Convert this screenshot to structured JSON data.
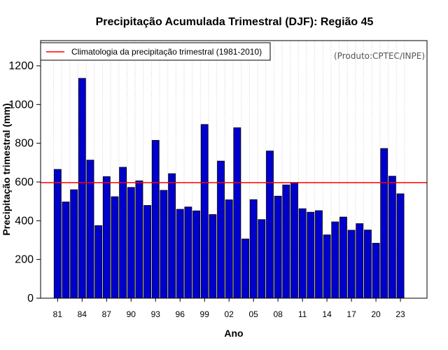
{
  "chart_data": {
    "type": "bar",
    "title": "Precipitação Acumulada Trimestral (DJF): Região 45",
    "xlabel": "Ano",
    "ylabel": "Precipitação trimestral (mm)",
    "credit": "(Produto:CPTEC/INPE)",
    "legend": {
      "label": "Climatologia da precipitação trimestral (1981-2010)",
      "placement": "top-left"
    },
    "ylim": [
      0,
      1330
    ],
    "yticks": [
      0,
      200,
      400,
      600,
      800,
      1000,
      1200
    ],
    "ytick_labels": [
      "0",
      "200",
      "400",
      "600",
      "800",
      "1000",
      "1200"
    ],
    "xtick_labels": [
      "81",
      "84",
      "87",
      "90",
      "93",
      "96",
      "99",
      "02",
      "05",
      "08",
      "11",
      "14",
      "17",
      "20",
      "23"
    ],
    "xtick_every": 3,
    "categories": [
      "81",
      "82",
      "83",
      "84",
      "85",
      "86",
      "87",
      "88",
      "89",
      "90",
      "91",
      "92",
      "93",
      "94",
      "95",
      "96",
      "97",
      "98",
      "99",
      "00",
      "01",
      "02",
      "03",
      "04",
      "05",
      "06",
      "07",
      "08",
      "09",
      "10",
      "11",
      "12",
      "13",
      "14",
      "15",
      "16",
      "17",
      "18",
      "19",
      "20",
      "21",
      "22",
      "23"
    ],
    "values": [
      665,
      497,
      560,
      1135,
      713,
      375,
      628,
      524,
      676,
      572,
      606,
      479,
      815,
      557,
      643,
      459,
      471,
      451,
      897,
      432,
      708,
      508,
      880,
      306,
      509,
      406,
      760,
      527,
      585,
      597,
      462,
      444,
      452,
      327,
      394,
      419,
      351,
      385,
      352,
      284,
      773,
      630,
      539
    ],
    "climatology": 597,
    "grid": "vertical dotted",
    "colors": {
      "bar": "#0000cd",
      "bar_edge": "#000000",
      "climatology_line": "#ff0000",
      "grid": "#cccccc",
      "credit": "#555555"
    }
  }
}
